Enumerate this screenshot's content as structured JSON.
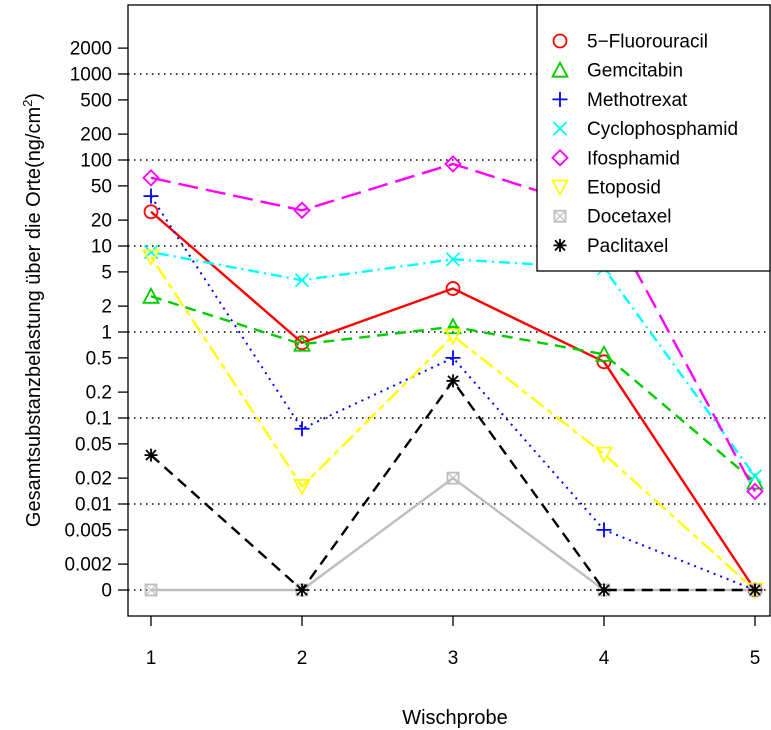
{
  "chart_data": {
    "type": "line",
    "title": "",
    "xlabel": "Wischprobe",
    "ylabel_main": "Gesamtsubstanzbelastung über die Orte(ng/cm",
    "ylabel_sup": "2",
    "ylabel_end": ")",
    "y_scale": "log (0 shown at bottom)",
    "x": [
      1,
      2,
      3,
      4,
      5
    ],
    "x_tick_labels": [
      "1",
      "2",
      "3",
      "4",
      "5"
    ],
    "y_tick_labels": [
      "2000",
      "1000",
      "500",
      "200",
      "100",
      "50",
      "20",
      "10",
      "5",
      "2",
      "1",
      "0.5",
      "0.2",
      "0.1",
      "0.05",
      "0.02",
      "0.01",
      "0.005",
      "0.002",
      "0"
    ],
    "reference_lines": [
      1000,
      100,
      10,
      1,
      0.1,
      0.01,
      0
    ],
    "legend_position": "top-right",
    "series": [
      {
        "name": "5−Fluorouracil",
        "color": "#ff0000",
        "marker": "circle",
        "line": "solid",
        "values": [
          25,
          0.75,
          3.2,
          0.45,
          0
        ]
      },
      {
        "name": "Gemcitabin",
        "color": "#00cc00",
        "marker": "triangle-up",
        "line": "dashed",
        "values": [
          2.6,
          0.72,
          1.15,
          0.55,
          0.018
        ]
      },
      {
        "name": "Methotrexat",
        "color": "#0000ff",
        "marker": "plus",
        "line": "dotted",
        "values": [
          38,
          0.075,
          0.5,
          0.005,
          0
        ]
      },
      {
        "name": "Cyclophosphamid",
        "color": "#00ffff",
        "marker": "x",
        "line": "dotdash",
        "values": [
          8.5,
          4,
          7,
          5.5,
          0.021
        ]
      },
      {
        "name": "Ifosphamid",
        "color": "#ff00ff",
        "marker": "diamond",
        "line": "longdash",
        "values": [
          62,
          26,
          90,
          25,
          0.014
        ]
      },
      {
        "name": "Etoposid",
        "color": "#ffff00",
        "marker": "triangle-down",
        "line": "twodash",
        "values": [
          7.5,
          0.016,
          0.9,
          0.038,
          0
        ]
      },
      {
        "name": "Docetaxel",
        "color": "#bebebe",
        "marker": "boxed-x",
        "line": "solid",
        "values": [
          0,
          0,
          0.02,
          0,
          0
        ]
      },
      {
        "name": "Paclitaxel",
        "color": "#000000",
        "marker": "asterisk",
        "line": "dashed",
        "values": [
          0.037,
          0,
          0.27,
          0,
          0
        ]
      }
    ]
  }
}
